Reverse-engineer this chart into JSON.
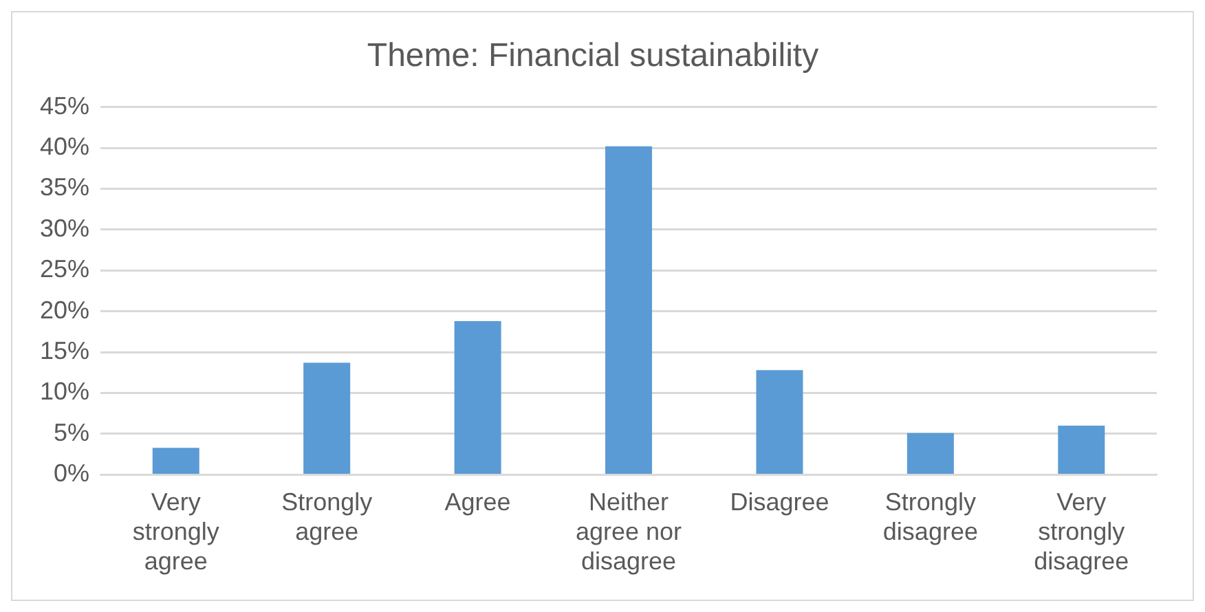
{
  "chart_data": {
    "type": "bar",
    "title": "Theme: Financial sustainability",
    "categories": [
      "Very strongly agree",
      "Strongly agree",
      "Agree",
      "Neither agree nor disagree",
      "Disagree",
      "Strongly disagree",
      "Very strongly disagree"
    ],
    "values": [
      3.3,
      13.7,
      18.8,
      40.2,
      12.8,
      5.1,
      6.0
    ],
    "color": "#5b9bd5",
    "ylim": [
      0,
      45
    ],
    "yticks": [
      {
        "value": 0,
        "label": "0%"
      },
      {
        "value": 5,
        "label": "5%"
      },
      {
        "value": 10,
        "label": "10%"
      },
      {
        "value": 15,
        "label": "15%"
      },
      {
        "value": 20,
        "label": "20%"
      },
      {
        "value": 25,
        "label": "25%"
      },
      {
        "value": 30,
        "label": "30%"
      },
      {
        "value": 35,
        "label": "35%"
      },
      {
        "value": 40,
        "label": "40%"
      },
      {
        "value": 45,
        "label": "45%"
      }
    ],
    "grid": "y",
    "legend": false
  }
}
